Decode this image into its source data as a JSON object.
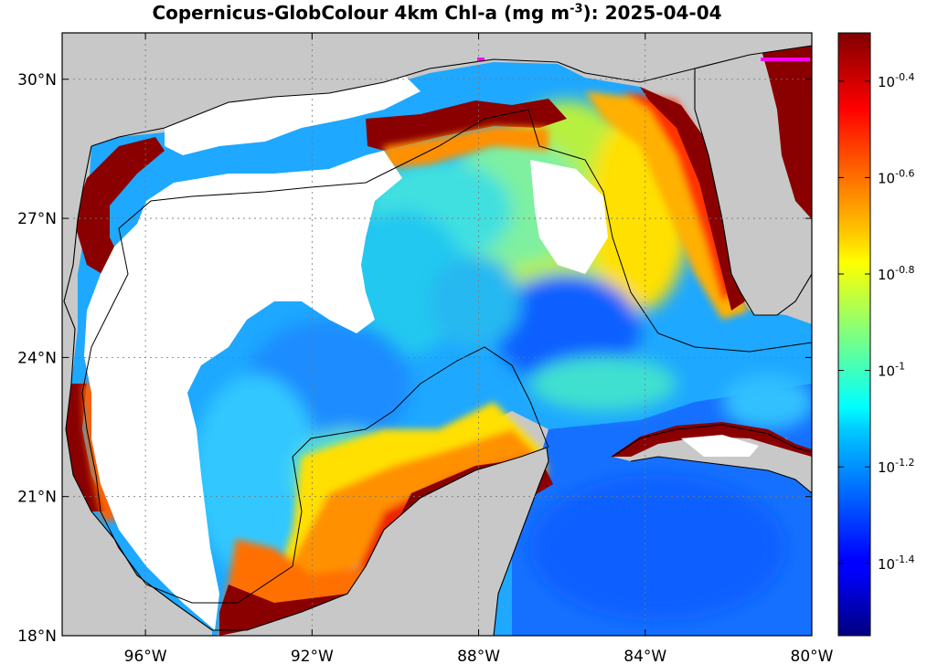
{
  "title": {
    "prefix": "Copernicus-GlobColour 4km Chl-a (mg m",
    "exponent": "-3",
    "suffix": "): 2025-04-04"
  },
  "map": {
    "lon_range": [
      -98,
      -80
    ],
    "lat_range": [
      18,
      31
    ],
    "x_ticks": [
      {
        "value": -96,
        "label": "96°W"
      },
      {
        "value": -92,
        "label": "92°W"
      },
      {
        "value": -88,
        "label": "88°W"
      },
      {
        "value": -84,
        "label": "84°W"
      },
      {
        "value": -80,
        "label": "80°W"
      }
    ],
    "y_ticks": [
      {
        "value": 30,
        "label": "30°N"
      },
      {
        "value": 27,
        "label": "27°N"
      },
      {
        "value": 24,
        "label": "24°N"
      },
      {
        "value": 21,
        "label": "21°N"
      },
      {
        "value": 18,
        "label": "18°N"
      }
    ],
    "grid": true,
    "land_color": "#c8c8c8",
    "no_data_color": "#ffffff"
  },
  "colorbar": {
    "scale": "log10",
    "range_log10": [
      -1.55,
      -0.3
    ],
    "colormap": "jet",
    "ticks": [
      {
        "value": -0.4,
        "base": "10",
        "exp": "-0.4"
      },
      {
        "value": -0.6,
        "base": "10",
        "exp": "-0.6"
      },
      {
        "value": -0.8,
        "base": "10",
        "exp": "-0.8"
      },
      {
        "value": -1.0,
        "base": "10",
        "exp": "-1"
      },
      {
        "value": -1.2,
        "base": "10",
        "exp": "-1.2"
      },
      {
        "value": -1.4,
        "base": "10",
        "exp": "-1.4"
      }
    ]
  }
}
